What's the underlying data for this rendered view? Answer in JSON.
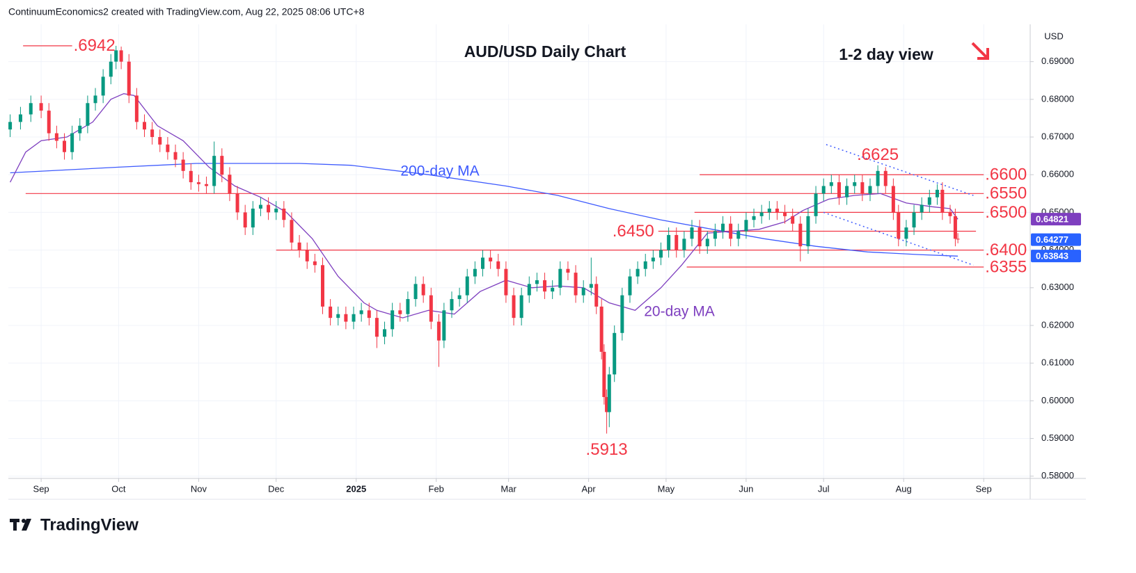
{
  "header": {
    "credit": "ContinuumEconomics2 created with TradingView.com, Aug 22, 2025 08:06 UTC+8"
  },
  "logo": "TradingView",
  "chart_data": {
    "type": "candlestick",
    "title": "AUD/USD Daily Chart",
    "subtitle": "1-2 day view",
    "currency": "USD",
    "xlim": [
      -12.7,
      383
    ],
    "xticks": [
      {
        "value": 0,
        "label": "Sep"
      },
      {
        "value": 30,
        "label": "Oct"
      },
      {
        "value": 61,
        "label": "Nov"
      },
      {
        "value": 91,
        "label": "Dec"
      },
      {
        "value": 122,
        "label": "2025"
      },
      {
        "value": 153,
        "label": "Feb"
      },
      {
        "value": 181,
        "label": "Mar"
      },
      {
        "value": 212,
        "label": "Apr"
      },
      {
        "value": 242,
        "label": "May"
      },
      {
        "value": 273,
        "label": "Jun"
      },
      {
        "value": 303,
        "label": "Jul"
      },
      {
        "value": 334,
        "label": "Aug"
      },
      {
        "value": 365,
        "label": "Sep"
      }
    ],
    "ylim": [
      0.5794,
      0.6999
    ],
    "yticks": [
      {
        "value": 0.58,
        "label": "0.58000"
      },
      {
        "value": 0.59,
        "label": "0.59000"
      },
      {
        "value": 0.6,
        "label": "0.60000"
      },
      {
        "value": 0.61,
        "label": "0.61000"
      },
      {
        "value": 0.62,
        "label": "0.62000"
      },
      {
        "value": 0.63,
        "label": "0.63000"
      },
      {
        "value": 0.64,
        "label": "0.64000"
      },
      {
        "value": 0.65,
        "label": "0.65000"
      },
      {
        "value": 0.66,
        "label": "0.66000"
      },
      {
        "value": 0.67,
        "label": "0.67000"
      },
      {
        "value": 0.68,
        "label": "0.68000"
      },
      {
        "value": 0.69,
        "label": "0.69000"
      }
    ],
    "grid": true,
    "candles": {
      "up_color": "#089981",
      "down_color": "#f23645",
      "x": [
        -12,
        -8,
        -4,
        0,
        3,
        6,
        9,
        12,
        15,
        18,
        21,
        24,
        27,
        29,
        31,
        34,
        37,
        40,
        43,
        46,
        49,
        52,
        55,
        58,
        61,
        64,
        67,
        70,
        73,
        76,
        79,
        82,
        85,
        88,
        91,
        94,
        97,
        100,
        103,
        106,
        109,
        112,
        115,
        118,
        121,
        124,
        127,
        130,
        133,
        136,
        139,
        142,
        145,
        148,
        151,
        154,
        156,
        159,
        162,
        165,
        168,
        171,
        174,
        177,
        180,
        183,
        186,
        189,
        192,
        195,
        198,
        201,
        204,
        207,
        210,
        213,
        215,
        217,
        218,
        219,
        220,
        222,
        225,
        228,
        231,
        234,
        237,
        240,
        243,
        246,
        249,
        252,
        255,
        258,
        261,
        264,
        267,
        270,
        273,
        276,
        279,
        282,
        285,
        288,
        291,
        294,
        297,
        300,
        303,
        306,
        309,
        312,
        315,
        318,
        321,
        324,
        327,
        330,
        332,
        335,
        338,
        341,
        344,
        347,
        349,
        352,
        354,
        355
      ],
      "open": [
        0.672,
        0.674,
        0.676,
        0.679,
        0.677,
        0.671,
        0.669,
        0.666,
        0.671,
        0.673,
        0.679,
        0.681,
        0.686,
        0.69,
        0.693,
        0.69,
        0.681,
        0.674,
        0.672,
        0.67,
        0.668,
        0.666,
        0.664,
        0.661,
        0.658,
        0.6575,
        0.657,
        0.665,
        0.66,
        0.655,
        0.65,
        0.646,
        0.651,
        0.652,
        0.65,
        0.651,
        0.648,
        0.642,
        0.64,
        0.637,
        0.636,
        0.625,
        0.622,
        0.623,
        0.621,
        0.623,
        0.624,
        0.622,
        0.617,
        0.619,
        0.624,
        0.623,
        0.627,
        0.631,
        0.628,
        0.621,
        0.616,
        0.624,
        0.627,
        0.628,
        0.633,
        0.635,
        0.638,
        0.637,
        0.635,
        0.628,
        0.622,
        0.628,
        0.631,
        0.632,
        0.629,
        0.63,
        0.635,
        0.634,
        0.628,
        0.63,
        0.631,
        0.625,
        0.613,
        0.601,
        0.597,
        0.607,
        0.618,
        0.628,
        0.633,
        0.635,
        0.637,
        0.638,
        0.64,
        0.644,
        0.64,
        0.643,
        0.646,
        0.641,
        0.643,
        0.645,
        0.647,
        0.643,
        0.645,
        0.648,
        0.649,
        0.65,
        0.651,
        0.65,
        0.649,
        0.647,
        0.641,
        0.649,
        0.655,
        0.657,
        0.658,
        0.654,
        0.657,
        0.658,
        0.655,
        0.657,
        0.661,
        0.657,
        0.65,
        0.643,
        0.646,
        0.65,
        0.652,
        0.654,
        0.656,
        0.65,
        0.649,
        0.643
      ],
      "high": [
        0.676,
        0.678,
        0.681,
        0.681,
        0.679,
        0.673,
        0.671,
        0.673,
        0.675,
        0.681,
        0.683,
        0.688,
        0.692,
        0.6942,
        0.694,
        0.692,
        0.683,
        0.676,
        0.674,
        0.672,
        0.67,
        0.668,
        0.666,
        0.663,
        0.66,
        0.6595,
        0.6688,
        0.667,
        0.662,
        0.657,
        0.652,
        0.653,
        0.654,
        0.654,
        0.653,
        0.653,
        0.65,
        0.644,
        0.642,
        0.639,
        0.638,
        0.627,
        0.625,
        0.625,
        0.625,
        0.626,
        0.626,
        0.624,
        0.621,
        0.626,
        0.626,
        0.629,
        0.633,
        0.633,
        0.63,
        0.623,
        0.626,
        0.629,
        0.63,
        0.635,
        0.637,
        0.64,
        0.64,
        0.639,
        0.637,
        0.63,
        0.63,
        0.633,
        0.634,
        0.634,
        0.632,
        0.637,
        0.637,
        0.636,
        0.632,
        0.638,
        0.633,
        0.627,
        0.615,
        0.603,
        0.609,
        0.62,
        0.63,
        0.635,
        0.637,
        0.639,
        0.64,
        0.642,
        0.646,
        0.646,
        0.645,
        0.648,
        0.648,
        0.645,
        0.647,
        0.649,
        0.649,
        0.647,
        0.65,
        0.651,
        0.652,
        0.653,
        0.653,
        0.652,
        0.651,
        0.649,
        0.651,
        0.657,
        0.659,
        0.66,
        0.66,
        0.659,
        0.66,
        0.66,
        0.659,
        0.6625,
        0.662,
        0.659,
        0.652,
        0.648,
        0.652,
        0.654,
        0.656,
        0.6575,
        0.658,
        0.652,
        0.651,
        0.6445
      ],
      "low": [
        0.67,
        0.672,
        0.674,
        0.675,
        0.669,
        0.667,
        0.664,
        0.664,
        0.669,
        0.671,
        0.677,
        0.679,
        0.684,
        0.688,
        0.688,
        0.679,
        0.672,
        0.67,
        0.668,
        0.666,
        0.664,
        0.662,
        0.659,
        0.656,
        0.6555,
        0.655,
        0.655,
        0.658,
        0.653,
        0.648,
        0.644,
        0.644,
        0.649,
        0.648,
        0.648,
        0.646,
        0.64,
        0.638,
        0.635,
        0.634,
        0.623,
        0.62,
        0.62,
        0.619,
        0.619,
        0.621,
        0.62,
        0.614,
        0.615,
        0.617,
        0.621,
        0.621,
        0.625,
        0.626,
        0.619,
        0.609,
        0.614,
        0.622,
        0.625,
        0.626,
        0.631,
        0.633,
        0.635,
        0.633,
        0.626,
        0.62,
        0.62,
        0.626,
        0.629,
        0.627,
        0.627,
        0.628,
        0.632,
        0.626,
        0.626,
        0.628,
        0.623,
        0.611,
        0.599,
        0.5913,
        0.593,
        0.605,
        0.616,
        0.626,
        0.631,
        0.633,
        0.635,
        0.636,
        0.638,
        0.638,
        0.638,
        0.641,
        0.639,
        0.639,
        0.641,
        0.643,
        0.641,
        0.641,
        0.643,
        0.646,
        0.647,
        0.648,
        0.648,
        0.647,
        0.645,
        0.637,
        0.639,
        0.647,
        0.653,
        0.655,
        0.652,
        0.652,
        0.655,
        0.653,
        0.653,
        0.655,
        0.655,
        0.648,
        0.641,
        0.641,
        0.644,
        0.648,
        0.65,
        0.652,
        0.648,
        0.647,
        0.641,
        0.6418
      ],
      "close": [
        0.674,
        0.676,
        0.679,
        0.677,
        0.671,
        0.669,
        0.666,
        0.671,
        0.673,
        0.679,
        0.681,
        0.686,
        0.69,
        0.693,
        0.69,
        0.681,
        0.674,
        0.672,
        0.67,
        0.668,
        0.666,
        0.664,
        0.661,
        0.658,
        0.6575,
        0.657,
        0.665,
        0.66,
        0.655,
        0.65,
        0.646,
        0.651,
        0.652,
        0.65,
        0.651,
        0.648,
        0.642,
        0.64,
        0.637,
        0.636,
        0.625,
        0.622,
        0.623,
        0.621,
        0.623,
        0.624,
        0.622,
        0.617,
        0.619,
        0.624,
        0.623,
        0.627,
        0.631,
        0.628,
        0.621,
        0.616,
        0.624,
        0.627,
        0.628,
        0.633,
        0.635,
        0.638,
        0.637,
        0.635,
        0.628,
        0.622,
        0.628,
        0.631,
        0.632,
        0.629,
        0.63,
        0.635,
        0.634,
        0.628,
        0.63,
        0.631,
        0.625,
        0.613,
        0.601,
        0.597,
        0.607,
        0.618,
        0.628,
        0.633,
        0.635,
        0.637,
        0.638,
        0.64,
        0.644,
        0.64,
        0.643,
        0.646,
        0.641,
        0.643,
        0.645,
        0.647,
        0.643,
        0.645,
        0.648,
        0.649,
        0.65,
        0.651,
        0.65,
        0.649,
        0.647,
        0.641,
        0.649,
        0.655,
        0.657,
        0.658,
        0.654,
        0.657,
        0.658,
        0.655,
        0.657,
        0.661,
        0.657,
        0.65,
        0.643,
        0.646,
        0.65,
        0.652,
        0.654,
        0.656,
        0.65,
        0.649,
        0.643,
        0.6428
      ]
    },
    "series": [
      {
        "name": "200-day MA",
        "type": "line",
        "color": "#3d5afe",
        "x": [
          -12,
          30,
          60,
          100,
          120,
          150,
          180,
          200,
          220,
          240,
          260,
          280,
          300,
          320,
          340,
          355
        ],
        "values": [
          0.6605,
          0.662,
          0.663,
          0.663,
          0.6625,
          0.66,
          0.657,
          0.6545,
          0.651,
          0.648,
          0.6455,
          0.643,
          0.641,
          0.6395,
          0.6388,
          0.6384
        ]
      },
      {
        "name": "20-day MA",
        "type": "line",
        "color": "#7e3fbf",
        "x": [
          -12,
          -6,
          0,
          10,
          20,
          27,
          32,
          36,
          45,
          55,
          65,
          75,
          85,
          95,
          105,
          115,
          125,
          130,
          140,
          150,
          160,
          170,
          180,
          190,
          200,
          210,
          220,
          230,
          240,
          248,
          258,
          268,
          278,
          288,
          295,
          305,
          315,
          325,
          335,
          345,
          352,
          355
        ],
        "values": [
          0.658,
          0.666,
          0.669,
          0.67,
          0.674,
          0.68,
          0.6815,
          0.681,
          0.673,
          0.669,
          0.662,
          0.657,
          0.654,
          0.65,
          0.643,
          0.633,
          0.626,
          0.624,
          0.622,
          0.624,
          0.623,
          0.629,
          0.632,
          0.63,
          0.6305,
          0.63,
          0.626,
          0.624,
          0.63,
          0.636,
          0.6445,
          0.645,
          0.6455,
          0.6475,
          0.6505,
          0.6535,
          0.6545,
          0.655,
          0.6525,
          0.6515,
          0.651,
          0.6482
        ]
      }
    ],
    "levels_color": "#f23645",
    "levels": [
      {
        "label": ".6942",
        "value": 0.6942,
        "x": [
          -7,
          12
        ],
        "label_side": "right"
      },
      {
        "label": ".6600",
        "value": 0.66,
        "x": [
          255,
          365
        ],
        "label_side": "right"
      },
      {
        "label": ".6550",
        "value": 0.655,
        "x": [
          -6,
          365
        ],
        "label_side": "right"
      },
      {
        "label": ".6500",
        "value": 0.65,
        "x": [
          253,
          365
        ],
        "label_side": "right"
      },
      {
        "label": ".6450",
        "value": 0.645,
        "x": [
          239,
          362
        ],
        "label_side": "left"
      },
      {
        "label": ".6400",
        "value": 0.64,
        "x": [
          91,
          365
        ],
        "label_side": "right"
      },
      {
        "label": ".6355",
        "value": 0.6355,
        "x": [
          250,
          365
        ],
        "label_side": "right"
      }
    ],
    "point_labels": [
      {
        "label": ".6625",
        "value": 0.6625,
        "x": 324,
        "position": "above"
      },
      {
        "label": ".5913",
        "value": 0.5913,
        "x": 219,
        "position": "below"
      }
    ],
    "trend_color": "#3d5afe",
    "trend_lines": [
      {
        "x": [
          304,
          361
        ],
        "values": [
          0.668,
          0.6545
        ]
      },
      {
        "x": [
          303,
          361
        ],
        "values": [
          0.65,
          0.636
        ]
      }
    ],
    "price_tags": [
      {
        "value": 0.64821,
        "color": "#7e3fbf"
      },
      {
        "value": 0.64277,
        "color": "#2962ff"
      },
      {
        "value": 0.63843,
        "color": "#2962ff"
      }
    ]
  }
}
